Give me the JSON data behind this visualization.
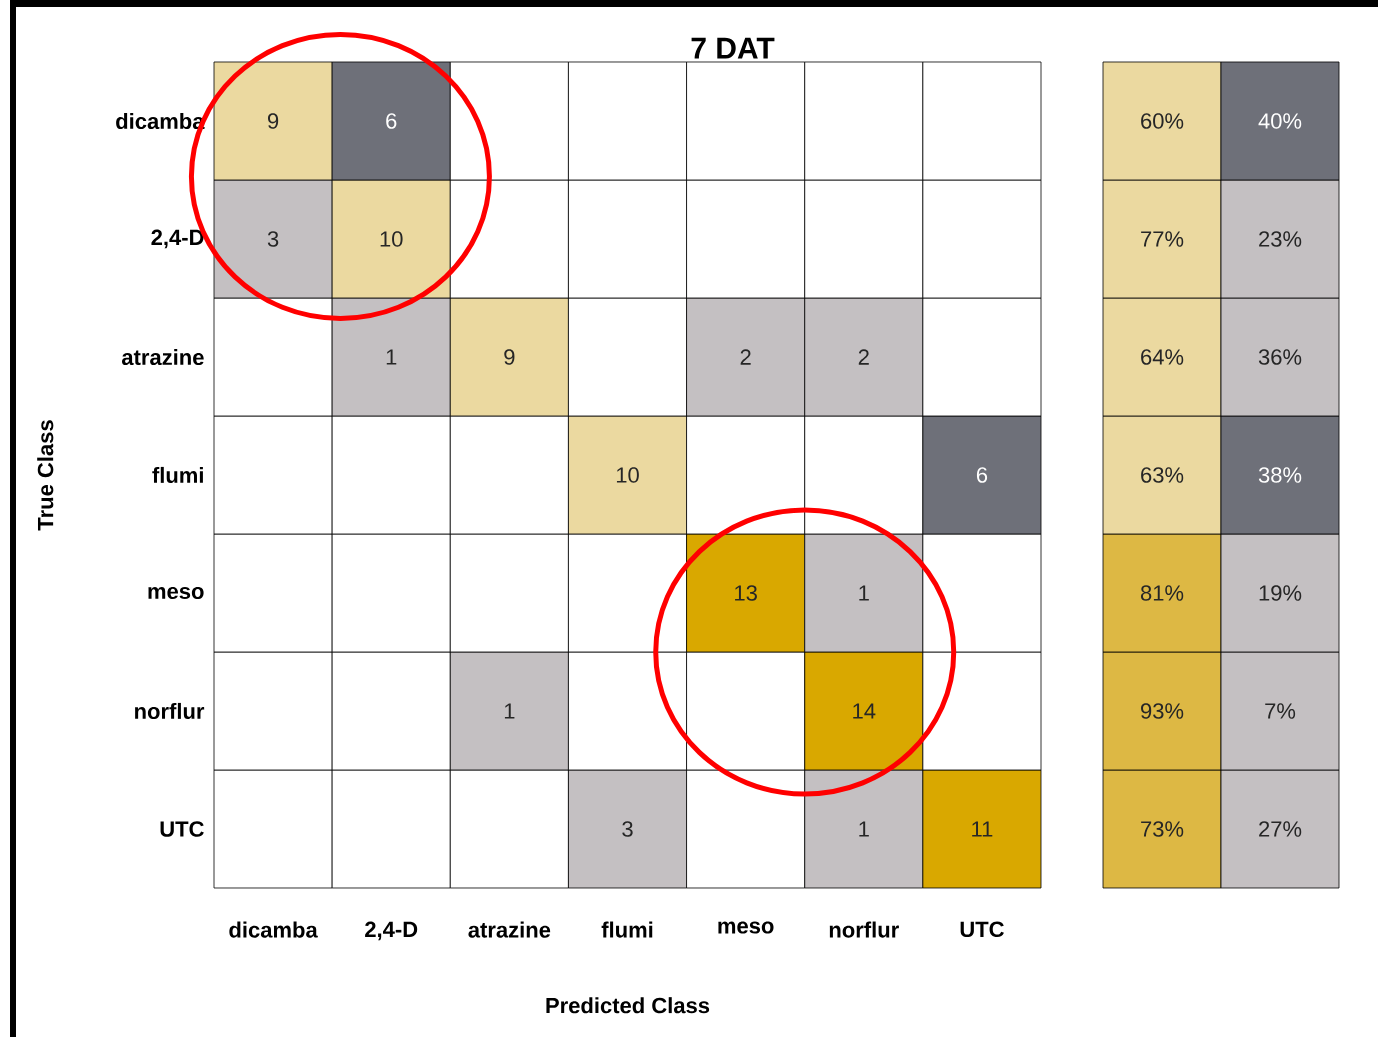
{
  "chart_data": [
    {
      "type": "heatmap",
      "data_labels": true,
      "title": "7 DAT",
      "xlabel": "Predicted Class",
      "ylabel": "True Class",
      "categories": [
        "dicamba",
        "2,4-D",
        "atrazine",
        "flumi",
        "meso",
        "norflur",
        "UTC"
      ],
      "y_categories": [
        "dicamba",
        "2,4-D",
        "atrazine",
        "flumi",
        "meso",
        "norflur",
        "UTC"
      ],
      "cells": [
        [
          9,
          6,
          null,
          null,
          null,
          null,
          null
        ],
        [
          3,
          10,
          null,
          null,
          null,
          null,
          null
        ],
        [
          null,
          1,
          9,
          null,
          2,
          2,
          null
        ],
        [
          null,
          null,
          null,
          10,
          null,
          null,
          6
        ],
        [
          null,
          null,
          null,
          null,
          13,
          1,
          null
        ],
        [
          null,
          null,
          1,
          null,
          null,
          14,
          null
        ],
        [
          null,
          null,
          null,
          3,
          null,
          1,
          11
        ]
      ],
      "colors": [
        [
          "#ebd9a0",
          "#6e7079",
          null,
          null,
          null,
          null,
          null
        ],
        [
          "#c4c0c2",
          "#ebd9a0",
          null,
          null,
          null,
          null,
          null
        ],
        [
          null,
          "#c4c0c2",
          "#ebd9a0",
          null,
          "#c4c0c2",
          "#c4c0c2",
          null
        ],
        [
          null,
          null,
          null,
          "#ebd9a0",
          null,
          null,
          "#6e7079"
        ],
        [
          null,
          null,
          null,
          null,
          "#d9a800",
          "#c4c0c2",
          null
        ],
        [
          null,
          null,
          "#c4c0c2",
          null,
          null,
          "#d9a800",
          null
        ],
        [
          null,
          null,
          null,
          "#c4c0c2",
          null,
          "#c4c0c2",
          "#d9a800"
        ]
      ]
    },
    {
      "type": "heatmap",
      "categories": [
        null,
        null
      ],
      "y_categories": [
        null,
        null,
        null,
        null,
        null,
        null,
        null
      ],
      "cells": [
        [
          60,
          40
        ],
        [
          77,
          23
        ],
        [
          64,
          36
        ],
        [
          63,
          38
        ],
        [
          81,
          19
        ],
        [
          93,
          7
        ],
        [
          73,
          27
        ]
      ],
      "cell_labels": [
        [
          "60%",
          "40%"
        ],
        [
          "77%",
          "23%"
        ],
        [
          "64%",
          "36%"
        ],
        [
          "63%",
          "38%"
        ],
        [
          "81%",
          "19%"
        ],
        [
          "93%",
          "7%"
        ],
        [
          "73%",
          "27%"
        ]
      ],
      "colors": [
        [
          "#ebd9a0",
          "#6e7079"
        ],
        [
          "#ebd9a0",
          "#c4c0c2"
        ],
        [
          "#ebd9a0",
          "#c4c0c2"
        ],
        [
          "#ebd9a0",
          "#6e7079"
        ],
        [
          "#ddb844",
          "#c4c0c2"
        ],
        [
          "#ddb844",
          "#c4c0c2"
        ],
        [
          "#ddb844",
          "#c4c0c2"
        ]
      ]
    }
  ]
}
